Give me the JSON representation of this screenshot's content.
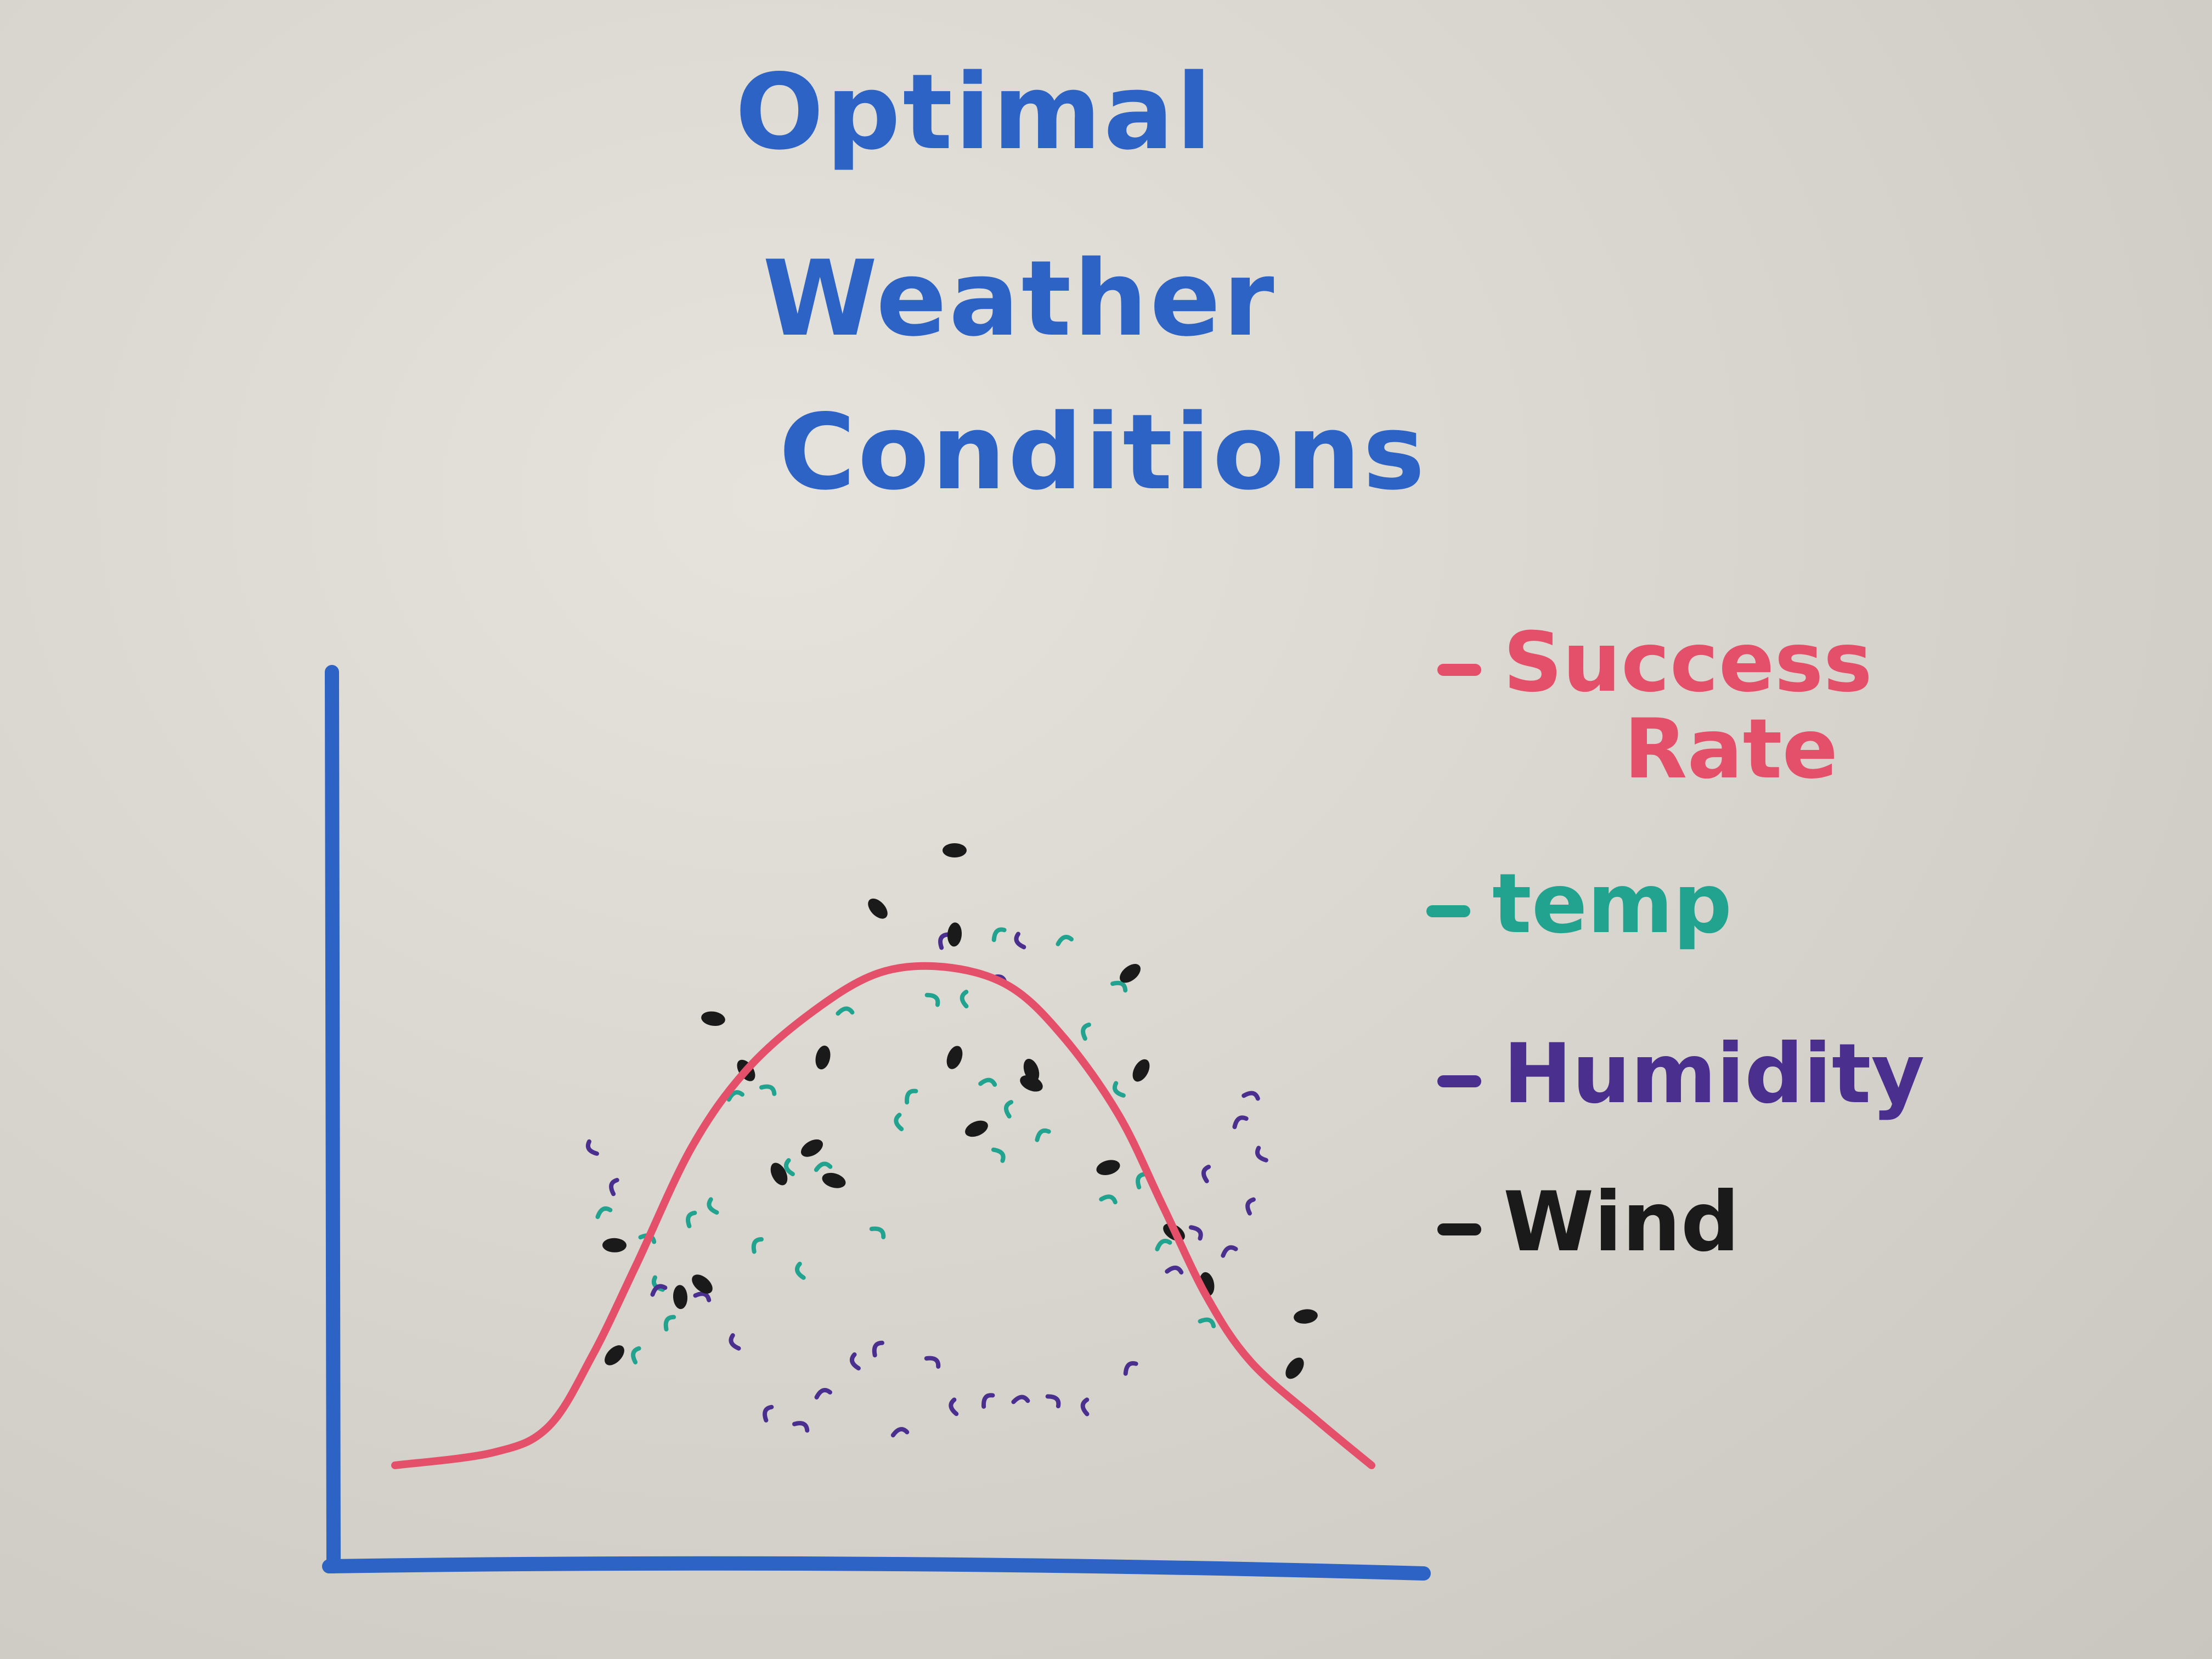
{
  "chart_data": {
    "type": "scatter",
    "title": [
      "Optimal",
      "Weather",
      "Conditions"
    ],
    "xlabel": "",
    "ylabel": "",
    "xlim": [
      0,
      100
    ],
    "ylim": [
      0,
      100
    ],
    "grid": false,
    "legend": {
      "placement": "right",
      "items": [
        {
          "label_lines": [
            "Success",
            "Rate"
          ],
          "color": "#e4506a"
        },
        {
          "label_lines": [
            "temp"
          ],
          "color": "#22a38f"
        },
        {
          "label_lines": [
            "Humidity"
          ],
          "color": "#4a2f8f"
        },
        {
          "label_lines": [
            "Wind"
          ],
          "color": "#1a1a1a"
        }
      ]
    },
    "series": [
      {
        "name": "Success Rate",
        "kind": "line",
        "color": "#e4506a",
        "points": [
          [
            6,
            5
          ],
          [
            15,
            7
          ],
          [
            20,
            11
          ],
          [
            24,
            22
          ],
          [
            28,
            36
          ],
          [
            33,
            54
          ],
          [
            38,
            66
          ],
          [
            44,
            75
          ],
          [
            50,
            81
          ],
          [
            56,
            82
          ],
          [
            62,
            79
          ],
          [
            67,
            71
          ],
          [
            72,
            59
          ],
          [
            76,
            45
          ],
          [
            80,
            31
          ],
          [
            84,
            21
          ],
          [
            90,
            12
          ],
          [
            95,
            5
          ]
        ]
      },
      {
        "name": "temp",
        "kind": "scatter",
        "color": "#22a38f",
        "points": [
          [
            30,
            33
          ],
          [
            28,
            22
          ],
          [
            25,
            44
          ],
          [
            29,
            40
          ],
          [
            35,
            45
          ],
          [
            33,
            43
          ],
          [
            37,
            62
          ],
          [
            40,
            63
          ],
          [
            42,
            51
          ],
          [
            39,
            39
          ],
          [
            45,
            51
          ],
          [
            50,
            41
          ],
          [
            52,
            58
          ],
          [
            53,
            62
          ],
          [
            47,
            75
          ],
          [
            55,
            77
          ],
          [
            58,
            77
          ],
          [
            61,
            87
          ],
          [
            60,
            64
          ],
          [
            61,
            53
          ],
          [
            62,
            60
          ],
          [
            65,
            56
          ],
          [
            71,
            46
          ],
          [
            72,
            63
          ],
          [
            69,
            72
          ],
          [
            76,
            39
          ],
          [
            80,
            27
          ],
          [
            80,
            33
          ],
          [
            74,
            49
          ],
          [
            67,
            86
          ],
          [
            72,
            79
          ],
          [
            43,
            35
          ],
          [
            31,
            27
          ]
        ]
      },
      {
        "name": "Humidity",
        "kind": "scatter",
        "color": "#4a2f8f",
        "points": [
          [
            24,
            54
          ],
          [
            26,
            48
          ],
          [
            30,
            32
          ],
          [
            34,
            31
          ],
          [
            37,
            24
          ],
          [
            40,
            13
          ],
          [
            45,
            16
          ],
          [
            43,
            11
          ],
          [
            48,
            21
          ],
          [
            50,
            23
          ],
          [
            52,
            10
          ],
          [
            55,
            21
          ],
          [
            57,
            14
          ],
          [
            60,
            15
          ],
          [
            63,
            15
          ],
          [
            66,
            15
          ],
          [
            69,
            14
          ],
          [
            73,
            20
          ],
          [
            77,
            35
          ],
          [
            79,
            41
          ],
          [
            80,
            50
          ],
          [
            83,
            58
          ],
          [
            84,
            62
          ],
          [
            85,
            53
          ],
          [
            84,
            45
          ],
          [
            82,
            38
          ],
          [
            61,
            80
          ],
          [
            63,
            86
          ],
          [
            56,
            86
          ]
        ]
      },
      {
        "name": "Wind",
        "kind": "scatter",
        "color": "#1a1a1a",
        "points": [
          [
            57,
            100
          ],
          [
            50,
            91
          ],
          [
            57,
            87
          ],
          [
            73,
            81
          ],
          [
            35,
            74
          ],
          [
            38,
            66
          ],
          [
            45,
            68
          ],
          [
            44,
            54
          ],
          [
            46,
            49
          ],
          [
            41,
            50
          ],
          [
            57,
            68
          ],
          [
            59,
            57
          ],
          [
            64,
            64
          ],
          [
            64,
            66
          ],
          [
            74,
            66
          ],
          [
            71,
            51
          ],
          [
            77,
            41
          ],
          [
            80,
            33
          ],
          [
            88,
            20
          ],
          [
            89,
            28
          ],
          [
            34,
            33
          ],
          [
            32,
            31
          ],
          [
            26,
            22
          ],
          [
            26,
            39
          ]
        ]
      }
    ]
  }
}
